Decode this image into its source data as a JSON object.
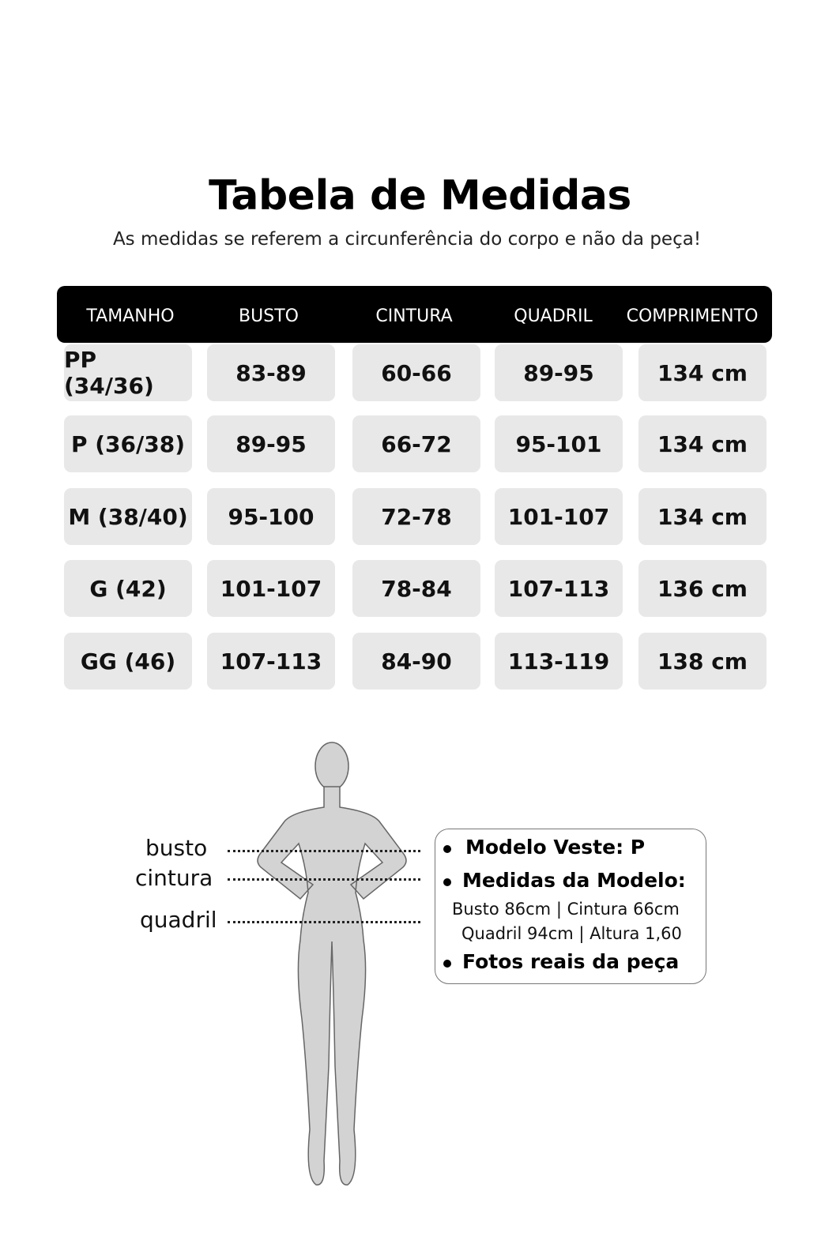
{
  "title": "Tabela de Medidas",
  "subtitle": "As medidas se referem a circunferência do corpo e não da peça!",
  "table": {
    "headers": [
      "TAMANHO",
      "BUSTO",
      "CINTURA",
      "QUADRIL",
      "COMPRIMENTO"
    ],
    "rows": [
      [
        "PP (34/36)",
        "83-89",
        "60-66",
        "89-95",
        "134 cm"
      ],
      [
        "P (36/38)",
        "89-95",
        "66-72",
        "95-101",
        "134 cm"
      ],
      [
        "M (38/40)",
        "95-100",
        "72-78",
        "101-107",
        "134 cm"
      ],
      [
        "G (42)",
        "101-107",
        "78-84",
        "107-113",
        "136 cm"
      ],
      [
        "GG (46)",
        "107-113",
        "84-90",
        "113-119",
        "138 cm"
      ]
    ]
  },
  "figure_labels": {
    "bust": "busto",
    "waist": "cintura",
    "hip": "quadril"
  },
  "model_info": {
    "wears": "Modelo Veste:  P",
    "measures_title": "Medidas da Modelo:",
    "measures_line1": "Busto 86cm | Cintura 66cm",
    "measures_line2": "Quadril 94cm | Altura 1,60",
    "real_photos": "Fotos reais da peça"
  },
  "colors": {
    "header_bg": "#000000",
    "cell_bg": "#e8e8e8",
    "figure_fill": "#d3d3d3"
  }
}
